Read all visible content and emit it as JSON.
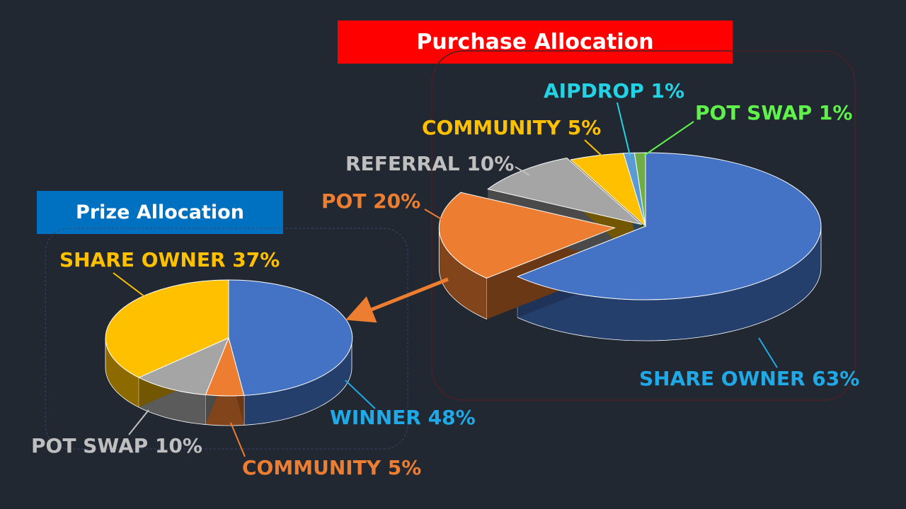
{
  "colors": {
    "background": "#222831",
    "purchase_banner": "#ff0000",
    "prize_banner": "#0070c0"
  },
  "chart_data": [
    {
      "type": "pie",
      "title": "Purchase Allocation",
      "slices": [
        {
          "label": "SHARE OWNER 63%",
          "value": 63,
          "color": "#4472c4",
          "label_color": "#1fa9e6"
        },
        {
          "label": "POT 20%",
          "value": 20,
          "color": "#ed7d31",
          "label_color": "#ed7d31"
        },
        {
          "label": "REFERRAL 10%",
          "value": 10,
          "color": "#a5a5a5",
          "label_color": "#bfbfbf"
        },
        {
          "label": "COMMUNITY 5%",
          "value": 5,
          "color": "#ffc000",
          "label_color": "#ffc000"
        },
        {
          "label": "AIPDROP 1%",
          "value": 1,
          "color": "#5b9bd5",
          "label_color": "#22d3e6"
        },
        {
          "label": "POT SWAP 1%",
          "value": 1,
          "color": "#70ad47",
          "label_color": "#5ef24a"
        }
      ]
    },
    {
      "type": "pie",
      "title": "Prize Allocation",
      "slices": [
        {
          "label": "WINNER 48%",
          "value": 48,
          "color": "#4472c4",
          "label_color": "#1fa9e6"
        },
        {
          "label": "COMMUNITY 5%",
          "value": 5,
          "color": "#ed7d31",
          "label_color": "#ed7d31"
        },
        {
          "label": "POT SWAP  10%",
          "value": 10,
          "color": "#a5a5a5",
          "label_color": "#bfbfbf"
        },
        {
          "label": "SHARE OWNER 37%",
          "value": 37,
          "color": "#ffc000",
          "label_color": "#ffc000"
        }
      ]
    }
  ]
}
